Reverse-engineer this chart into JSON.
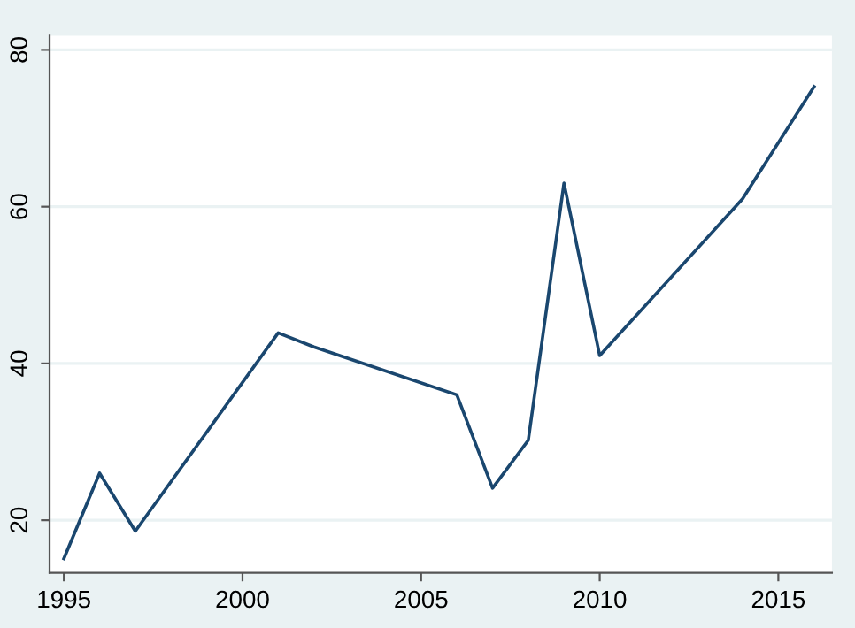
{
  "chart_data": {
    "type": "line",
    "x": [
      1995,
      1996,
      1997,
      2001,
      2002,
      2006,
      2007,
      2008,
      2009,
      2010,
      2014,
      2016
    ],
    "series": [
      {
        "color": "#1a476f",
        "values": [
          15.1,
          26.0,
          18.6,
          43.9,
          42.1,
          36.0,
          24.1,
          30.2,
          63.0,
          41.0,
          61.0,
          75.3
        ]
      }
    ],
    "xlim": [
      1994.6,
      2016.5
    ],
    "ylim": [
      13.3,
      81.8
    ],
    "xticks": [
      1995,
      2000,
      2005,
      2010,
      2015
    ],
    "yticks": [
      20,
      40,
      60,
      80
    ],
    "grid": "y",
    "legend": false,
    "marker": "none",
    "line_style": "solid"
  }
}
